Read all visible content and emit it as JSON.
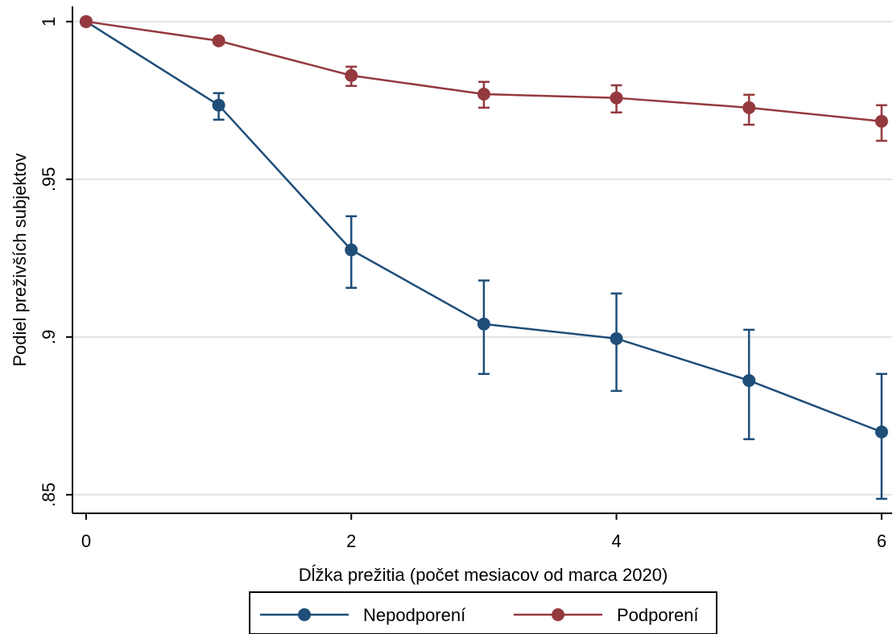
{
  "chart_data": {
    "type": "line",
    "x_label": "Dĺžka prežitia (počet mesiacov od marca 2020)",
    "y_label": "Podiel preživších subjektov",
    "x": [
      0,
      1,
      2,
      3,
      4,
      5,
      6
    ],
    "series": [
      {
        "name": "Nepodporení",
        "color": "#1f4e79",
        "values": [
          1.0,
          0.9735,
          0.9276,
          0.9041,
          0.8995,
          0.8862,
          0.8699
        ],
        "ci_lower": [
          null,
          0.9689,
          0.9156,
          0.8883,
          0.8829,
          0.8676,
          0.8487
        ],
        "ci_upper": [
          null,
          0.9773,
          0.9383,
          0.9179,
          0.9138,
          0.9023,
          0.8883
        ]
      },
      {
        "name": "Podporení",
        "color": "#943a3f",
        "values": [
          1.0,
          0.9939,
          0.9829,
          0.977,
          0.9758,
          0.9727,
          0.9684
        ],
        "ci_lower": [
          null,
          0.9929,
          0.9796,
          0.9727,
          0.9712,
          0.9673,
          0.9622
        ],
        "ci_upper": [
          null,
          0.9946,
          0.9857,
          0.9809,
          0.9798,
          0.9768,
          0.9735
        ]
      }
    ],
    "xlim": [
      -0.103,
      6.08
    ],
    "xticks": [
      0,
      2,
      4,
      6
    ],
    "ylim": [
      0.8441,
      1.0048
    ],
    "yticks": [
      {
        "value": 0.85,
        "label": ".85"
      },
      {
        "value": 0.9,
        "label": ".9"
      },
      {
        "value": 0.95,
        "label": ".95"
      },
      1
    ],
    "grid": true
  }
}
